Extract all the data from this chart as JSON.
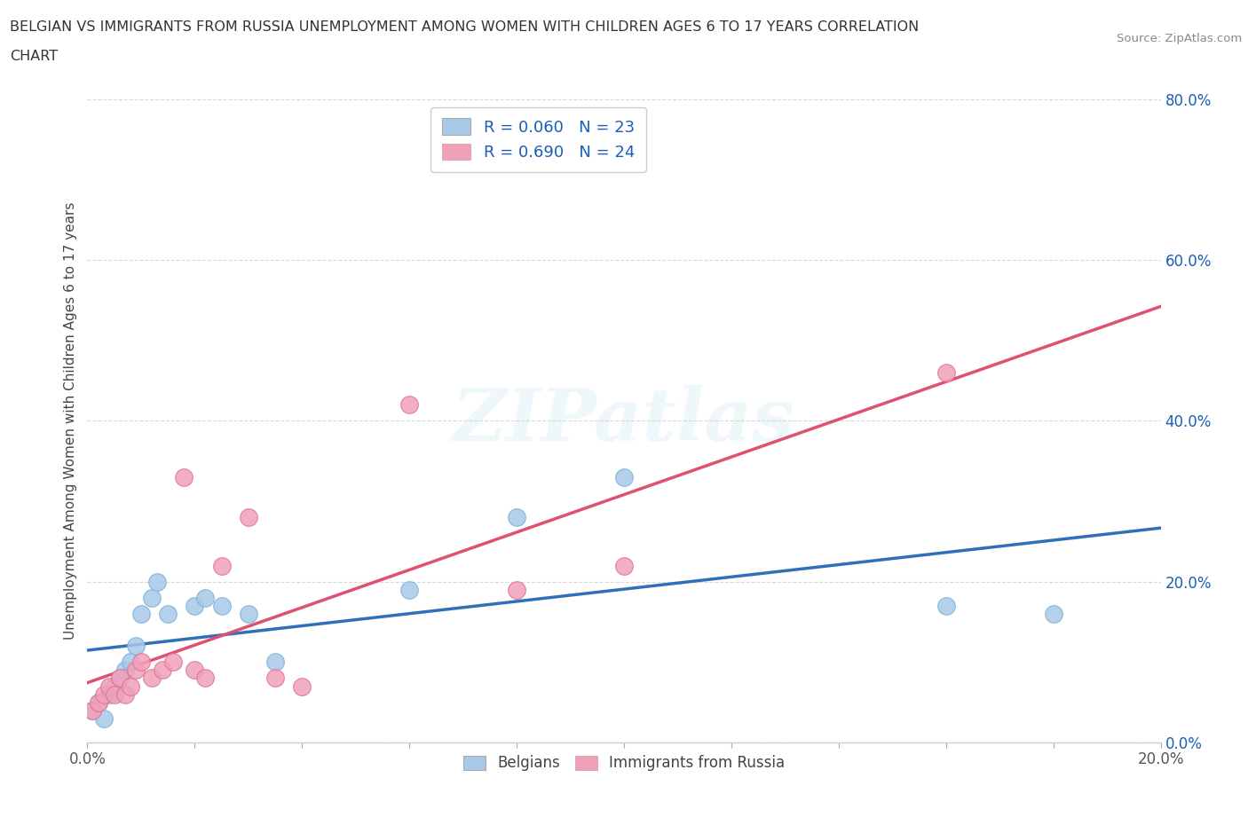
{
  "title_line1": "BELGIAN VS IMMIGRANTS FROM RUSSIA UNEMPLOYMENT AMONG WOMEN WITH CHILDREN AGES 6 TO 17 YEARS CORRELATION",
  "title_line2": "CHART",
  "source": "Source: ZipAtlas.com",
  "ylabel": "Unemployment Among Women with Children Ages 6 to 17 years",
  "xlim": [
    0.0,
    0.2
  ],
  "ylim": [
    0.0,
    0.8
  ],
  "xticks": [
    0.0,
    0.02,
    0.04,
    0.06,
    0.08,
    0.1,
    0.12,
    0.14,
    0.16,
    0.18,
    0.2
  ],
  "yticks": [
    0.0,
    0.2,
    0.4,
    0.6,
    0.8
  ],
  "ytick_labels": [
    "0.0%",
    "20.0%",
    "40.0%",
    "60.0%",
    "80.0%"
  ],
  "xtick_labels": [
    "0.0%",
    "",
    "",
    "",
    "",
    "",
    "",
    "",
    "",
    "",
    "20.0%"
  ],
  "belgian_color": "#a8c8e8",
  "russian_color": "#f0a0b8",
  "belgian_line_color": "#3070b8",
  "russian_line_color": "#e05070",
  "legend_R_belgian": "R = 0.060",
  "legend_N_belgian": "N = 23",
  "legend_R_russian": "R = 0.690",
  "legend_N_russian": "N = 24",
  "legend_text_color": "#1a5eb8",
  "watermark_text": "ZIPatlas",
  "background_color": "#ffffff",
  "grid_color": "#d8d8d8",
  "belgian_x": [
    0.001,
    0.002,
    0.003,
    0.004,
    0.005,
    0.006,
    0.007,
    0.008,
    0.009,
    0.01,
    0.012,
    0.013,
    0.015,
    0.02,
    0.022,
    0.025,
    0.03,
    0.035,
    0.06,
    0.08,
    0.1,
    0.16,
    0.18
  ],
  "belgian_y": [
    0.04,
    0.05,
    0.03,
    0.06,
    0.07,
    0.08,
    0.09,
    0.1,
    0.12,
    0.16,
    0.18,
    0.2,
    0.16,
    0.17,
    0.18,
    0.17,
    0.16,
    0.1,
    0.19,
    0.28,
    0.33,
    0.17,
    0.16
  ],
  "russian_x": [
    0.001,
    0.002,
    0.003,
    0.004,
    0.005,
    0.006,
    0.007,
    0.008,
    0.009,
    0.01,
    0.012,
    0.014,
    0.016,
    0.018,
    0.02,
    0.022,
    0.025,
    0.03,
    0.035,
    0.04,
    0.06,
    0.08,
    0.1,
    0.16
  ],
  "russian_y": [
    0.04,
    0.05,
    0.06,
    0.07,
    0.06,
    0.08,
    0.06,
    0.07,
    0.09,
    0.1,
    0.08,
    0.09,
    0.1,
    0.33,
    0.09,
    0.08,
    0.22,
    0.28,
    0.08,
    0.07,
    0.42,
    0.19,
    0.22,
    0.46
  ],
  "belgians_label": "Belgians",
  "russians_label": "Immigrants from Russia"
}
